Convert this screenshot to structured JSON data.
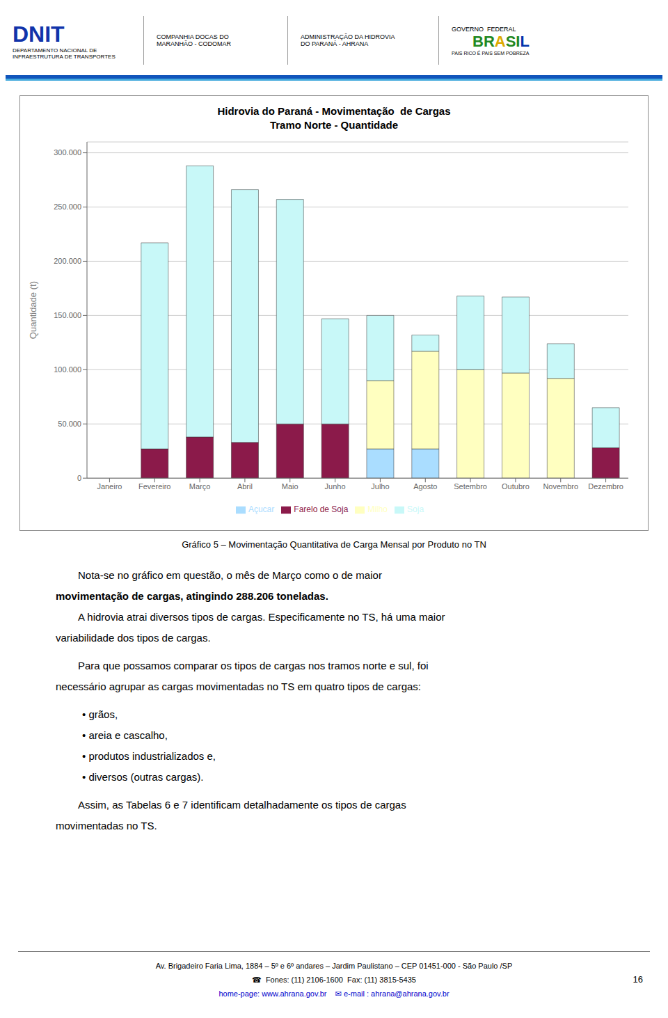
{
  "chart_data": {
    "type": "bar",
    "stacked": true,
    "title": "Hidrovia do Paraná - Movimentação  de Cargas",
    "subtitle": "Tramo Norte - Quantidade",
    "ylabel": "Quantidade (t)",
    "categories": [
      "Janeiro",
      "Fevereiro",
      "Março",
      "Abril",
      "Maio",
      "Junho",
      "Julho",
      "Agosto",
      "Setembro",
      "Outubro",
      "Novembro",
      "Dezembro"
    ],
    "series": [
      {
        "name": "Açucar",
        "color": "#AADDFF",
        "values": [
          0,
          0,
          0,
          0,
          0,
          0,
          27000,
          27000,
          0,
          0,
          0,
          0
        ]
      },
      {
        "name": "Farelo de Soja",
        "color": "#8B1A4A",
        "values": [
          0,
          27000,
          38000,
          33000,
          50000,
          50000,
          0,
          0,
          0,
          0,
          0,
          28000
        ]
      },
      {
        "name": "Milho",
        "color": "#FFFFC0",
        "values": [
          0,
          0,
          0,
          0,
          0,
          0,
          63000,
          90000,
          100000,
          97000,
          92000,
          0
        ]
      },
      {
        "name": "Soja",
        "color": "#C8F8F8",
        "values": [
          0,
          190000,
          250000,
          233000,
          207000,
          97000,
          60000,
          15000,
          68000,
          70000,
          32000,
          37000
        ]
      }
    ],
    "ylim": [
      0,
      310000
    ],
    "yticks": [
      0,
      {
        "value": 50000,
        "label": "50.000"
      },
      {
        "value": 100000,
        "label": "100.000"
      },
      {
        "value": 150000,
        "label": "150.000"
      },
      {
        "value": 200000,
        "label": "200.000"
      },
      {
        "value": 250000,
        "label": "250.000"
      },
      {
        "value": 300000,
        "label": "300.000"
      }
    ],
    "grid": true,
    "legend": "bottom",
    "annotations": [
      {
        "text": "DNIT",
        "color": "#1133AA"
      },
      {
        "text": "DEPARTAMENTO NACIONAL DE"
      },
      {
        "text": "INFRAESTRUTURA DE TRANSPORTES"
      },
      {
        "text": "COMPANHIA DOCAS DO"
      },
      {
        "text": "MARANHÃO - CODOMAR"
      },
      {
        "text": "ADMINISTRAÇÃO DA HIDROVIA"
      },
      {
        "text": "DO PARANÁ - AHRANA"
      },
      {
        "text": "GOVERNO  FEDERAL"
      },
      {
        "text": "BR",
        "color": "#228822"
      },
      {
        "text": "A",
        "color": "#DDAA00"
      },
      {
        "text": "SI",
        "color": "#228822"
      },
      {
        "text": "L",
        "color": "#0033AA"
      },
      {
        "text": "PAIS RICO É PAIS SEM POBREZA"
      },
      {
        "text": "Gráfico 5 – Movimentação Quantitativa de Carga Mensal por Produto no TN"
      },
      {
        "text": "Nota-se no gráfico em questão, o mês de Março como o de maior"
      },
      {
        "text": "movimentação de cargas, atingindo 288.206 toneladas."
      },
      {
        "text": "A hidrovia atrai diversos tipos de cargas. Especificamente no TS, há uma maior"
      },
      {
        "text": "variabilidade dos tipos de cargas."
      },
      {
        "text": "Para que possamos comparar os tipos de cargas nos tramos norte e sul, foi"
      },
      {
        "text": "necessário agrupar as cargas movimentadas no TS em quatro tipos de cargas:"
      },
      {
        "text": "• grãos,"
      },
      {
        "text": "• areia e cascalho,"
      },
      {
        "text": "• produtos industrializados e,"
      },
      {
        "text": "• diversos (outras cargas)."
      },
      {
        "text": "Assim, as Tabelas 6 e 7 identificam detalhadamente os tipos de cargas"
      },
      {
        "text": "movimentadas no TS."
      },
      {
        "text": "Av. Brigadeiro Faria Lima, 1884 – 5º e 6º andares – Jardim Paulistano – CEP 01451-000  - São Paulo /SP"
      },
      {
        "text": "☎  Fones: (11) 2106-1600  Fax: (11) 3815-5435"
      },
      {
        "text": "16"
      },
      {
        "text": "home-page: www.ahrana.gov.br    ✉ e-mail : ahrana@ahrana.gov.br",
        "color": "#0000CC"
      }
    ]
  }
}
